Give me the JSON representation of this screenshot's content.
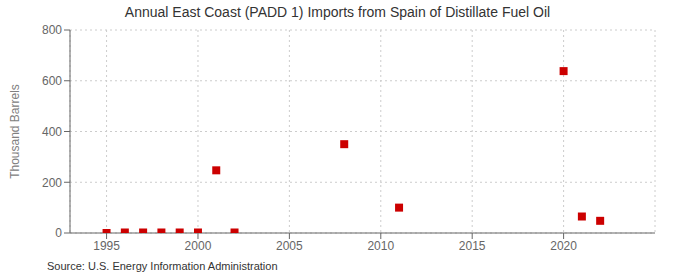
{
  "chart_data": {
    "type": "scatter",
    "title": "Annual East Coast (PADD 1) Imports from Spain of Distillate Fuel Oil",
    "ylabel": "Thousand Barrels",
    "source": "Source: U.S. Energy Information Administration",
    "x": [
      1995,
      1996,
      1997,
      1998,
      1999,
      2000,
      2001,
      2002,
      2008,
      2011,
      2020,
      2021,
      2022
    ],
    "values": [
      0,
      2,
      2,
      2,
      2,
      2,
      247,
      2,
      350,
      100,
      638,
      65,
      48
    ],
    "color": "#cc0000",
    "marker": "square",
    "xlim": [
      1993.0,
      2025.0
    ],
    "xticks": [
      1995,
      2000,
      2005,
      2010,
      2015,
      2020
    ],
    "ylim": [
      0,
      800
    ],
    "yticks": [
      0,
      200,
      400,
      600,
      800
    ],
    "grid": true
  }
}
